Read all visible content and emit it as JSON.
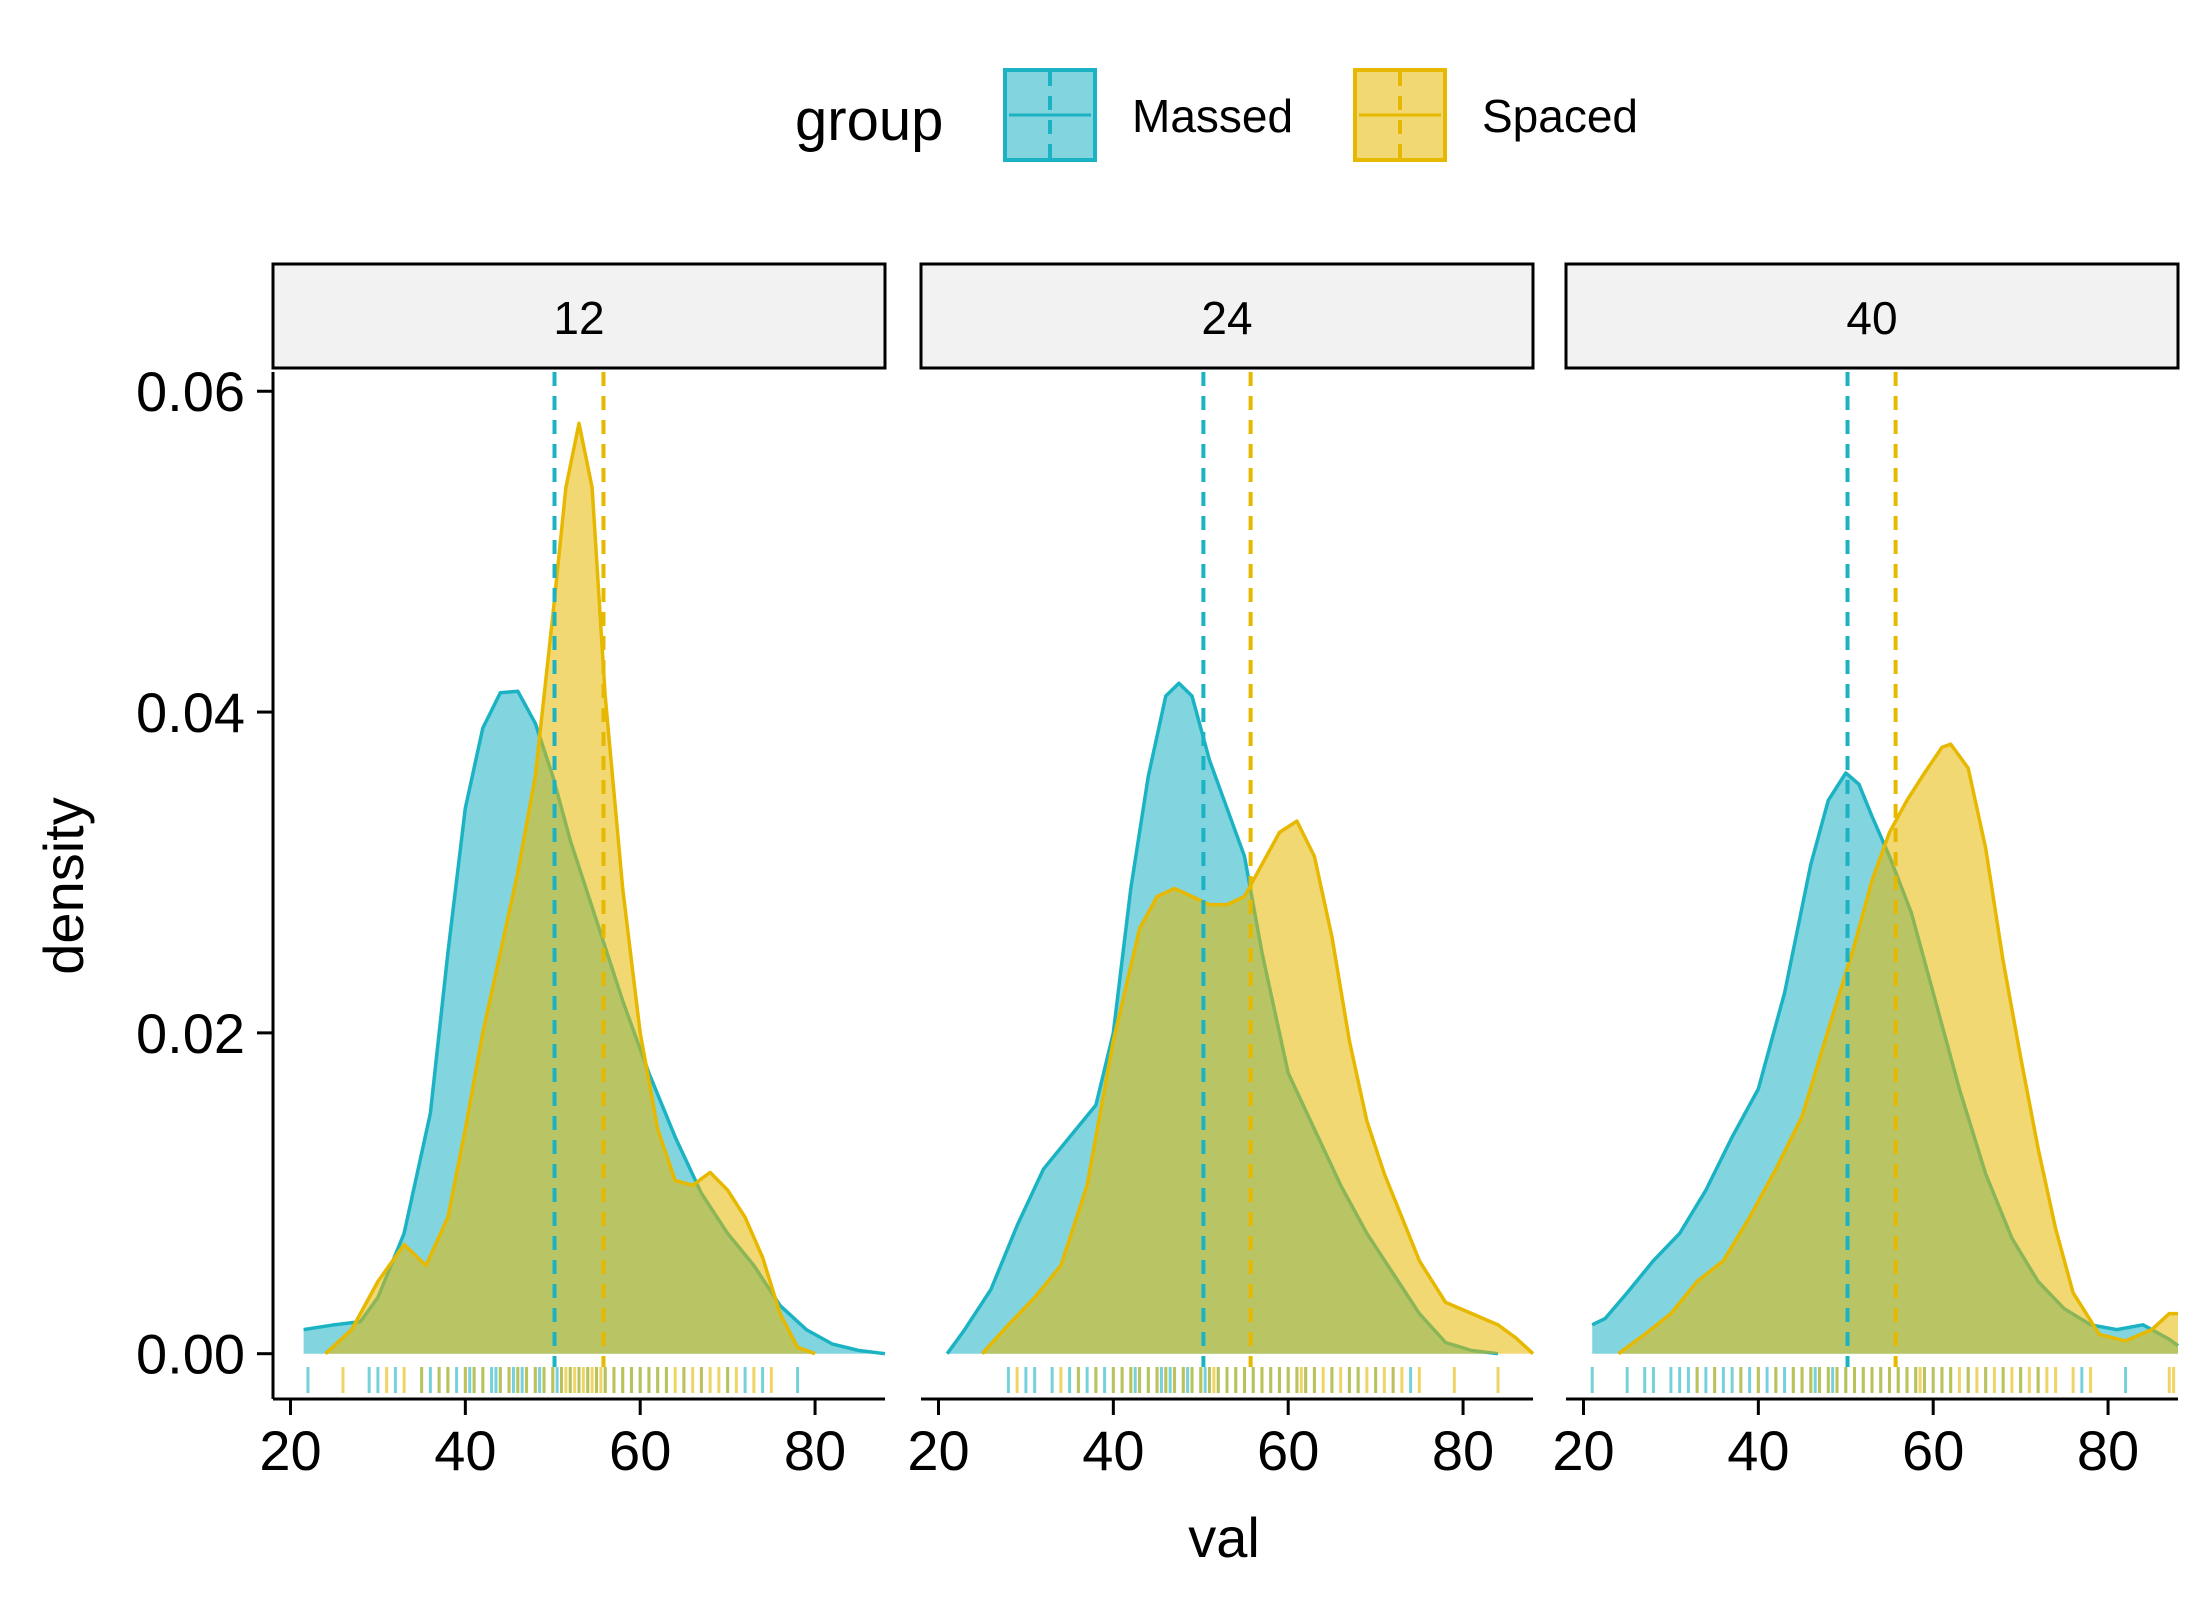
{
  "chart_data": {
    "type": "area",
    "subtype": "faceted-density",
    "xlabel": "val",
    "ylabel": "density",
    "xlim": [
      18,
      88
    ],
    "ylim": [
      -0.0027,
      0.0612
    ],
    "x_ticks": [
      20,
      40,
      60,
      80
    ],
    "x_tick_labels": [
      "20",
      "40",
      "60",
      "80"
    ],
    "y_ticks": [
      0.0,
      0.02,
      0.04,
      0.06
    ],
    "y_tick_labels": [
      "0.00",
      "0.02",
      "0.04",
      "0.06"
    ],
    "grid": false,
    "legend": {
      "title": "group",
      "position": "top",
      "entries": [
        {
          "label": "Massed",
          "color": "#1BB3C3"
        },
        {
          "label": "Spaced",
          "color": "#E7B800"
        }
      ]
    },
    "colors": {
      "Massed": "#1BB3C3",
      "Spaced": "#E7B800",
      "strip_fill": "#F2F2F2"
    },
    "fill_opacity": 0.55,
    "panels": [
      {
        "strip": "12",
        "series": [
          {
            "name": "Massed",
            "mean": 50.2,
            "x": [
              21.5,
              25,
              28,
              30,
              33,
              36,
              38,
              40,
              42,
              44,
              46,
              48,
              50,
              52,
              55,
              58,
              61,
              64,
              67,
              70,
              73,
              76,
              79,
              82,
              85,
              88
            ],
            "y": [
              0.0015,
              0.0018,
              0.002,
              0.0035,
              0.0075,
              0.015,
              0.025,
              0.034,
              0.039,
              0.0412,
              0.0413,
              0.0393,
              0.036,
              0.032,
              0.027,
              0.022,
              0.0175,
              0.0135,
              0.01,
              0.0075,
              0.0055,
              0.003,
              0.0015,
              0.0006,
              0.0002,
              0.0
            ],
            "rug": [
              22,
              29,
              30,
              32,
              35,
              36,
              37,
              38,
              39,
              40,
              40.5,
              41,
              42,
              43,
              43.5,
              44,
              45,
              45.5,
              46,
              46.5,
              47,
              48,
              48.5,
              49,
              50,
              50.5,
              51,
              52,
              53,
              54,
              55,
              56,
              57,
              58,
              59,
              60,
              61,
              62,
              63,
              65,
              67,
              70,
              72,
              74,
              78
            ]
          },
          {
            "name": "Spaced",
            "mean": 55.8,
            "x": [
              24,
              27,
              30,
              33,
              35.5,
              38,
              40,
              42,
              44,
              46,
              48,
              50,
              51.5,
              53,
              54.5,
              56,
              58,
              60,
              62,
              64,
              66,
              68,
              70,
              72,
              74,
              76,
              78,
              80
            ],
            "y": [
              0.0,
              0.0015,
              0.0045,
              0.0068,
              0.0055,
              0.0085,
              0.014,
              0.02,
              0.025,
              0.03,
              0.036,
              0.046,
              0.054,
              0.058,
              0.054,
              0.041,
              0.029,
              0.02,
              0.014,
              0.0108,
              0.0105,
              0.0113,
              0.0102,
              0.0085,
              0.006,
              0.0025,
              0.0004,
              0.0
            ],
            "rug": [
              26,
              31,
              33,
              35,
              37,
              38,
              40,
              41,
              42,
              44,
              45,
              46,
              47,
              48,
              49,
              50,
              51,
              51.5,
              52,
              52.5,
              53,
              53.5,
              54,
              54.5,
              55,
              55.5,
              56,
              57,
              58,
              59,
              60,
              61,
              62,
              63,
              64,
              65,
              66,
              67,
              68,
              69,
              70,
              71,
              73,
              75
            ]
          }
        ]
      },
      {
        "strip": "24",
        "series": [
          {
            "name": "Massed",
            "mean": 50.3,
            "x": [
              21,
              23,
              26,
              29,
              32,
              35,
              38,
              40,
              42,
              44,
              46,
              47.5,
              49,
              51,
              53,
              55,
              57,
              60,
              63,
              66,
              69,
              72,
              75,
              78,
              81,
              84
            ],
            "y": [
              0.0,
              0.0015,
              0.004,
              0.008,
              0.0115,
              0.0135,
              0.0155,
              0.02,
              0.029,
              0.036,
              0.041,
              0.0418,
              0.041,
              0.037,
              0.034,
              0.031,
              0.025,
              0.0175,
              0.014,
              0.0105,
              0.0075,
              0.005,
              0.0025,
              0.0007,
              0.0002,
              0.0
            ],
            "rug": [
              28,
              30,
              31,
              33,
              35,
              36,
              37,
              38,
              39,
              40,
              41,
              42,
              42.5,
              43,
              44,
              45,
              45.5,
              46,
              46.5,
              47,
              48,
              48.5,
              49,
              50,
              50.5,
              51,
              52,
              53,
              54,
              55,
              56,
              57,
              58,
              59,
              60,
              61,
              62,
              63,
              65,
              67,
              68,
              70,
              72,
              74
            ]
          },
          {
            "name": "Spaced",
            "mean": 55.7,
            "x": [
              25,
              28,
              31,
              34,
              37,
              40,
              43,
              45,
              47,
              49,
              51,
              53,
              55,
              57,
              59,
              61,
              63,
              65,
              67,
              69,
              71,
              73,
              75,
              78,
              81,
              84,
              86,
              88
            ],
            "y": [
              0.0,
              0.0018,
              0.0035,
              0.0055,
              0.0105,
              0.0195,
              0.0265,
              0.0285,
              0.029,
              0.0285,
              0.028,
              0.028,
              0.0285,
              0.0305,
              0.0325,
              0.0332,
              0.031,
              0.026,
              0.0195,
              0.0145,
              0.0112,
              0.0085,
              0.0058,
              0.0032,
              0.0025,
              0.0018,
              0.001,
              0.0
            ],
            "rug": [
              29,
              34,
              36,
              38,
              40,
              41,
              42,
              43,
              44,
              45,
              46,
              47,
              48,
              49,
              50,
              51,
              51.5,
              52,
              53,
              54,
              55,
              56,
              57,
              58,
              59,
              60,
              61,
              61.5,
              62,
              63,
              64,
              65,
              66,
              67,
              68,
              69,
              70,
              71,
              72,
              73,
              75,
              79,
              84
            ]
          }
        ]
      },
      {
        "strip": "40",
        "series": [
          {
            "name": "Massed",
            "mean": 50.2,
            "x": [
              21,
              22.5,
              25,
              28,
              31,
              34,
              37,
              40,
              43,
              46,
              48,
              50,
              51.5,
              53,
              55,
              57.5,
              60,
              63,
              66,
              69,
              72,
              75,
              78,
              81,
              84,
              87,
              88
            ],
            "y": [
              0.0018,
              0.0022,
              0.0038,
              0.0058,
              0.0075,
              0.0102,
              0.0135,
              0.0165,
              0.0225,
              0.0305,
              0.0345,
              0.0362,
              0.0355,
              0.0335,
              0.031,
              0.0275,
              0.0225,
              0.0165,
              0.0112,
              0.0072,
              0.0045,
              0.0028,
              0.0018,
              0.0015,
              0.0018,
              0.0009,
              0.0005
            ],
            "rug": [
              21,
              25,
              27,
              28,
              30,
              31,
              32,
              33,
              34,
              35,
              36,
              37,
              38,
              39,
              40,
              41,
              42,
              43,
              44,
              45,
              46,
              46.5,
              47,
              48,
              48.5,
              49,
              50,
              51,
              52,
              53,
              54,
              55,
              56,
              57,
              58,
              59,
              60,
              61,
              62,
              64,
              66,
              68,
              70,
              72,
              77,
              82
            ]
          },
          {
            "name": "Spaced",
            "mean": 55.7,
            "x": [
              24,
              27,
              30,
              33,
              36,
              39,
              42,
              45,
              48,
              51,
              53,
              55,
              57,
              59,
              61,
              62,
              64,
              66,
              68,
              70,
              72,
              74,
              76,
              79,
              82,
              85,
              87,
              88
            ],
            "y": [
              0.0,
              0.0012,
              0.0025,
              0.0045,
              0.0058,
              0.0085,
              0.0115,
              0.0148,
              0.0202,
              0.0255,
              0.0295,
              0.0325,
              0.0345,
              0.0362,
              0.0378,
              0.038,
              0.0365,
              0.0315,
              0.0245,
              0.0185,
              0.0128,
              0.0078,
              0.0038,
              0.0012,
              0.0008,
              0.0015,
              0.0025,
              0.0025
            ],
            "rug": [
              33,
              35,
              38,
              40,
              42,
              44,
              45,
              46,
              47,
              48,
              49,
              50,
              51,
              52,
              53,
              54,
              55,
              56,
              57,
              58,
              58.5,
              59,
              60,
              61,
              62,
              63,
              64,
              65,
              66,
              67,
              68,
              69,
              70,
              71,
              72,
              73,
              74,
              76,
              78,
              87,
              87.5
            ]
          }
        ]
      }
    ]
  }
}
